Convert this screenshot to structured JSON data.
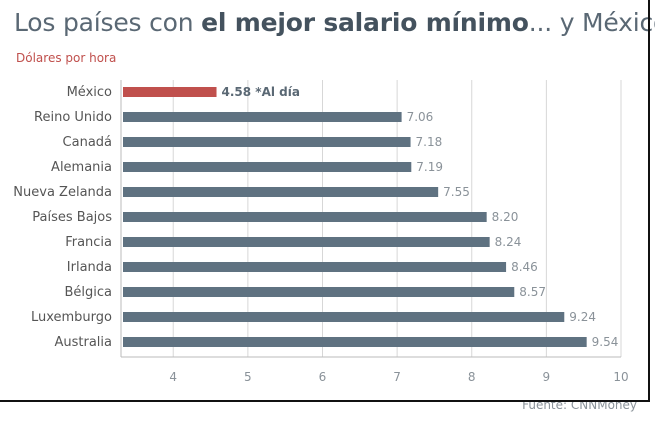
{
  "title": {
    "pre": "Los países con ",
    "bold": "el mejor salario mínimo",
    "post": "... y México"
  },
  "subtitle": "Dólares por hora",
  "source": "Fuente: CNNMoney",
  "colors": {
    "highlight": "#c0504d",
    "bar": "#5f7281",
    "grid": "#d7d7d7",
    "label": "#555555",
    "value": "#8a9299"
  },
  "chart_data": {
    "type": "bar",
    "orientation": "horizontal",
    "categories": [
      "México",
      "Reino Unido",
      "Canadá",
      "Alemania",
      "Nueva Zelanda",
      "Países Bajos",
      "Francia",
      "Irlanda",
      "Bélgica",
      "Luxemburgo",
      "Australia"
    ],
    "values": [
      4.58,
      7.06,
      7.18,
      7.19,
      7.55,
      8.2,
      8.24,
      8.46,
      8.57,
      9.24,
      9.54
    ],
    "value_labels": [
      "4.58 *Al día",
      "7.06",
      "7.18",
      "7.19",
      "7.55",
      "8.20",
      "8.24",
      "8.46",
      "8.57",
      "9.24",
      "9.54"
    ],
    "highlight_index": 0,
    "xlim": [
      3.3,
      10
    ],
    "xticks": [
      4,
      5,
      6,
      7,
      8,
      9,
      10
    ],
    "grid": true,
    "title": "Los países con el mejor salario mínimo... y México",
    "xlabel": "",
    "ylabel": "Dólares por hora"
  }
}
